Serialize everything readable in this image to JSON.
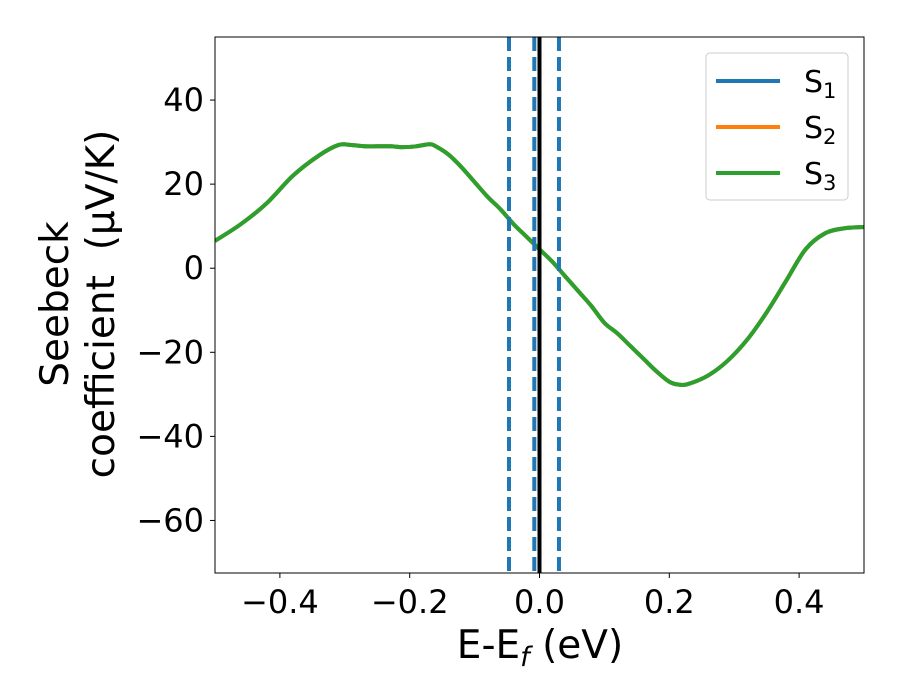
{
  "chart_data": {
    "type": "line",
    "xlabel": {
      "main": "E-E",
      "sub": "f",
      "tail": " (eV)"
    },
    "ylabel": {
      "line1": "Seebeck",
      "line2": "coefficient  (μV/K)"
    },
    "xlim": [
      -0.5,
      0.5
    ],
    "ylim": [
      -72.5,
      55
    ],
    "xticks": [
      {
        "value": -0.4,
        "label": "−0.4"
      },
      {
        "value": -0.2,
        "label": "−0.2"
      },
      {
        "value": 0.0,
        "label": "0.0"
      },
      {
        "value": 0.2,
        "label": "0.2"
      },
      {
        "value": 0.4,
        "label": "0.4"
      }
    ],
    "yticks": [
      {
        "value": 40,
        "label": "40"
      },
      {
        "value": 20,
        "label": "20"
      },
      {
        "value": 0,
        "label": "0"
      },
      {
        "value": -20,
        "label": "−20"
      },
      {
        "value": -40,
        "label": "−40"
      },
      {
        "value": -60,
        "label": "−60"
      }
    ],
    "grid": false,
    "legend": {
      "position": "top-right",
      "entries": [
        {
          "base": "S",
          "sub": "1",
          "color": "#1f77b4"
        },
        {
          "base": "S",
          "sub": "2",
          "color": "#ff7f0e"
        },
        {
          "base": "S",
          "sub": "3",
          "color": "#2ca02c"
        }
      ]
    },
    "vlines": [
      {
        "x": -0.047,
        "style": "dashed",
        "color": "#1f77b4"
      },
      {
        "x": -0.008,
        "style": "dashed",
        "color": "#1f77b4"
      },
      {
        "x": 0.0,
        "style": "solid",
        "color": "#000000"
      },
      {
        "x": 0.03,
        "style": "dashed",
        "color": "#1f77b4"
      }
    ],
    "x": [
      -0.5,
      -0.46,
      -0.42,
      -0.38,
      -0.34,
      -0.31,
      -0.29,
      -0.27,
      -0.25,
      -0.23,
      -0.21,
      -0.19,
      -0.17,
      -0.16,
      -0.14,
      -0.12,
      -0.1,
      -0.08,
      -0.06,
      -0.04,
      -0.02,
      0.0,
      0.02,
      0.04,
      0.06,
      0.08,
      0.1,
      0.12,
      0.14,
      0.16,
      0.18,
      0.2,
      0.215,
      0.23,
      0.26,
      0.29,
      0.32,
      0.35,
      0.38,
      0.41,
      0.44,
      0.47,
      0.5
    ],
    "series": [
      {
        "label": "S1",
        "color": "#1f77b4",
        "values": [
          6.5,
          10.5,
          15.5,
          22.0,
          26.8,
          29.3,
          29.3,
          29.0,
          29.0,
          29.0,
          28.8,
          29.0,
          29.5,
          29.0,
          27.0,
          24.0,
          20.5,
          17.0,
          14.0,
          10.5,
          7.5,
          4.5,
          1.5,
          -2.0,
          -5.5,
          -9.0,
          -13.0,
          -15.5,
          -18.5,
          -21.5,
          -24.5,
          -27.0,
          -27.7,
          -27.5,
          -25.5,
          -22.0,
          -17.0,
          -10.5,
          -3.0,
          4.5,
          8.3,
          9.5,
          9.8
        ]
      },
      {
        "label": "S2",
        "color": "#ff7f0e",
        "values": [
          6.5,
          10.5,
          15.5,
          22.0,
          26.8,
          29.3,
          29.3,
          29.0,
          29.0,
          29.0,
          28.8,
          29.0,
          29.5,
          29.0,
          27.0,
          24.0,
          20.5,
          17.0,
          14.0,
          10.5,
          7.5,
          4.5,
          1.5,
          -2.0,
          -5.5,
          -9.0,
          -13.0,
          -15.5,
          -18.5,
          -21.5,
          -24.5,
          -27.0,
          -27.7,
          -27.5,
          -25.5,
          -22.0,
          -17.0,
          -10.5,
          -3.0,
          4.5,
          8.3,
          9.5,
          9.8
        ]
      },
      {
        "label": "S3",
        "color": "#2ca02c",
        "values": [
          6.5,
          10.5,
          15.5,
          22.0,
          26.8,
          29.3,
          29.3,
          29.0,
          29.0,
          29.0,
          28.8,
          29.0,
          29.5,
          29.0,
          27.0,
          24.0,
          20.5,
          17.0,
          14.0,
          10.5,
          7.5,
          4.5,
          1.5,
          -2.0,
          -5.5,
          -9.0,
          -13.0,
          -15.5,
          -18.5,
          -21.5,
          -24.5,
          -27.0,
          -27.7,
          -27.5,
          -25.5,
          -22.0,
          -17.0,
          -10.5,
          -3.0,
          4.5,
          8.3,
          9.5,
          9.8
        ]
      }
    ]
  }
}
